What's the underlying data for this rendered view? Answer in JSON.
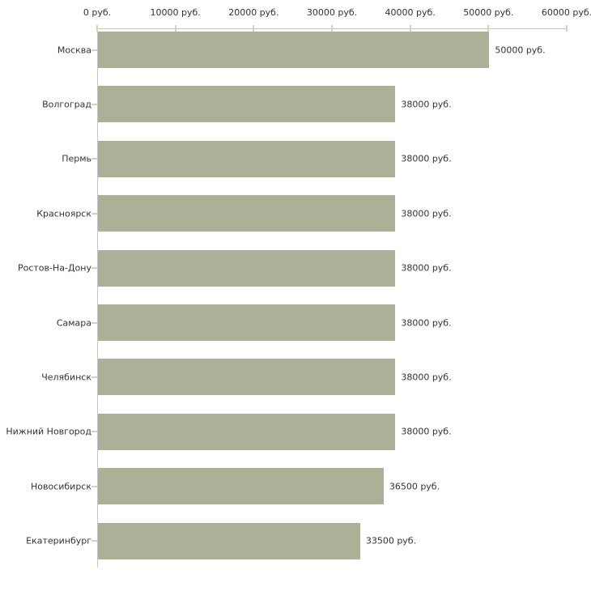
{
  "chart_data": {
    "type": "bar",
    "orientation": "horizontal",
    "title": "",
    "categories": [
      "Москва",
      "Волгоград",
      "Пермь",
      "Красноярск",
      "Ростов-На-Дону",
      "Самара",
      "Челябинск",
      "Нижний Новгород",
      "Новосибирск",
      "Екатеринбург"
    ],
    "values": [
      50000,
      38000,
      38000,
      38000,
      38000,
      38000,
      38000,
      38000,
      36500,
      33500
    ],
    "value_labels": [
      "50000 руб.",
      "38000 руб.",
      "38000 руб.",
      "38000 руб.",
      "38000 руб.",
      "38000 руб.",
      "38000 руб.",
      "38000 руб.",
      "36500 руб.",
      "33500 руб."
    ],
    "x_axis": {
      "position": "top",
      "min": 0,
      "max": 60000,
      "tick_values": [
        0,
        10000,
        20000,
        30000,
        40000,
        50000,
        60000
      ],
      "tick_labels": [
        "0 руб.",
        "10000 руб.",
        "20000 руб.",
        "30000 руб.",
        "40000 руб.",
        "50000 руб.",
        "60000 руб."
      ]
    },
    "grid": false,
    "legend": false,
    "colors": {
      "bar": "#abb196",
      "axis_line": "#c6c6c6",
      "tick_mark": "#d8d2ae",
      "text": "#333333",
      "background": "#ffffff"
    }
  }
}
